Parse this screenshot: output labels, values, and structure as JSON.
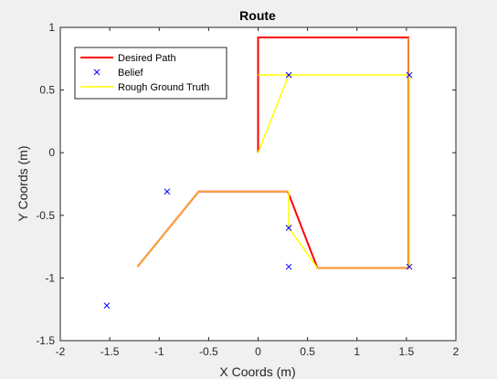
{
  "chart_data": {
    "type": "line",
    "title": "Route",
    "xlabel": "X Coords (m)",
    "ylabel": "Y Coords (m)",
    "xlim": [
      -2,
      2
    ],
    "ylim": [
      -1.5,
      1
    ],
    "xticks": [
      "-2",
      "-1.5",
      "-1",
      "-0.5",
      "0",
      "0.5",
      "1",
      "1.5",
      "2"
    ],
    "yticks": [
      "-1.5",
      "-1",
      "-0.5",
      "0",
      "0.5",
      "1"
    ],
    "grid": false,
    "legend_position": "top-left",
    "series": [
      {
        "name": "Desired Path",
        "style": "line",
        "color": "#ff0000",
        "x": [
          0,
          0,
          1.52,
          1.52,
          0.6,
          0.3,
          -0.6,
          -1.22
        ],
        "y": [
          0,
          0.92,
          0.92,
          -0.92,
          -0.92,
          -0.31,
          -0.31,
          -0.91
        ]
      },
      {
        "name": "Belief",
        "style": "marker-x",
        "color": "#0000ff",
        "x": [
          0.31,
          1.53,
          1.53,
          0.31,
          0.31,
          -0.92,
          -1.53
        ],
        "y": [
          0.62,
          0.62,
          -0.91,
          -0.91,
          -0.6,
          -0.31,
          -1.22
        ]
      },
      {
        "name": "Rough Ground Truth",
        "style": "line",
        "color": "#ffff00",
        "x": [
          0,
          0.31,
          0,
          0.31,
          1.53,
          1.53,
          0.6,
          0.31,
          0.31,
          -0.6,
          -1.22
        ],
        "y": [
          0,
          0.62,
          0.62,
          0.62,
          0.62,
          -0.92,
          -0.92,
          -0.6,
          -0.31,
          -0.31,
          -0.91
        ]
      },
      {
        "name": "",
        "style": "line",
        "color": "#f5a83a",
        "x": [
          1.52,
          1.52,
          0.6
        ],
        "y": [
          0.92,
          -0.92,
          -0.92
        ]
      },
      {
        "name": "",
        "style": "line",
        "color": "#f5a83a",
        "x": [
          0.3,
          -0.6,
          -1.22
        ],
        "y": [
          -0.31,
          -0.31,
          -0.91
        ]
      }
    ]
  }
}
